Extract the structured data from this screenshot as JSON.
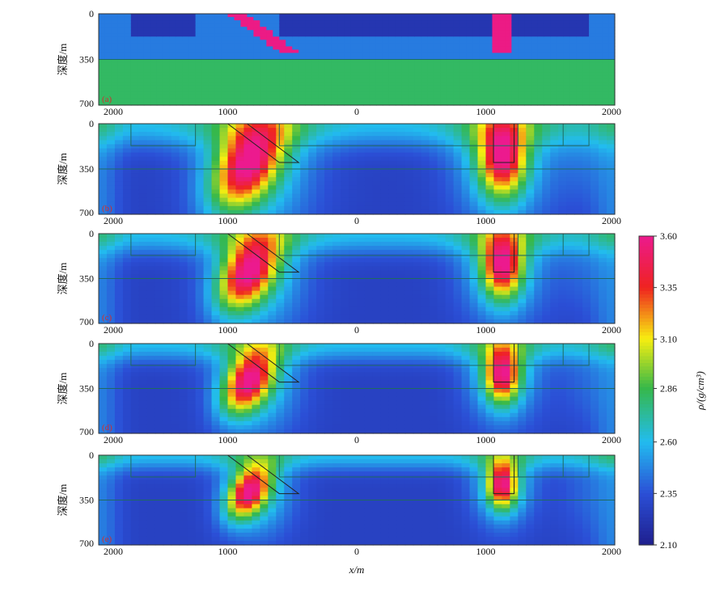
{
  "chart_data": {
    "type": "heatmap",
    "xlabel": "x/m",
    "ylabel": "深度/m",
    "x_tick_labels": [
      "2000",
      "1000",
      "0",
      "1000",
      "2000"
    ],
    "y_tick_labels": [
      "0",
      "350",
      "700"
    ],
    "xlim": [
      -2000,
      2000
    ],
    "ylim": [
      0,
      700
    ],
    "colorbar": {
      "label": "ρ/(g/cm³)",
      "ticks": [
        3.6,
        3.35,
        3.1,
        2.86,
        2.6,
        2.35,
        2.1
      ],
      "tick_labels": [
        "3.60",
        "3.35",
        "3.10",
        "2.86",
        "2.60",
        "2.35",
        "2.10"
      ],
      "range": [
        2.1,
        3.6
      ],
      "stops": [
        {
          "v": 2.1,
          "color": "#1f1f8e"
        },
        {
          "v": 2.35,
          "color": "#2b4fd6"
        },
        {
          "v": 2.6,
          "color": "#22bcef"
        },
        {
          "v": 2.86,
          "color": "#36b84a"
        },
        {
          "v": 3.1,
          "color": "#f7ee10"
        },
        {
          "v": 3.35,
          "color": "#ef2320"
        },
        {
          "v": 3.6,
          "color": "#ec1a8e"
        }
      ]
    },
    "model": {
      "layer_boundary_depth": 350,
      "upper_density": 2.45,
      "lower_density": 2.82,
      "low_density_value": 2.22,
      "high_density_value": 3.58,
      "low_bodies": [
        {
          "x": [
            -1750,
            -1250
          ],
          "top": 0,
          "bottom": 170
        },
        {
          "x": [
            -600,
            1600
          ],
          "top": 0,
          "bottom": 170
        },
        {
          "x": [
            1250,
            1800
          ],
          "top": 0,
          "bottom": 170
        }
      ],
      "high_bodies": [
        {
          "type": "inclined",
          "x_top": [
            -1000,
            -850
          ],
          "x_bottom": [
            -600,
            -450
          ],
          "top": 0,
          "bottom": 300
        },
        {
          "type": "vertical",
          "x": [
            1060,
            1220
          ],
          "top": 0,
          "bottom": 300
        }
      ]
    },
    "panels": [
      {
        "label": "(a)",
        "kind": "model"
      },
      {
        "label": "(b)",
        "kind": "inversion",
        "spread": 1.0
      },
      {
        "label": "(c)",
        "kind": "inversion",
        "spread": 0.8
      },
      {
        "label": "(d)",
        "kind": "inversion",
        "spread": 0.65
      },
      {
        "label": "(e)",
        "kind": "inversion",
        "spread": 0.5
      }
    ]
  }
}
